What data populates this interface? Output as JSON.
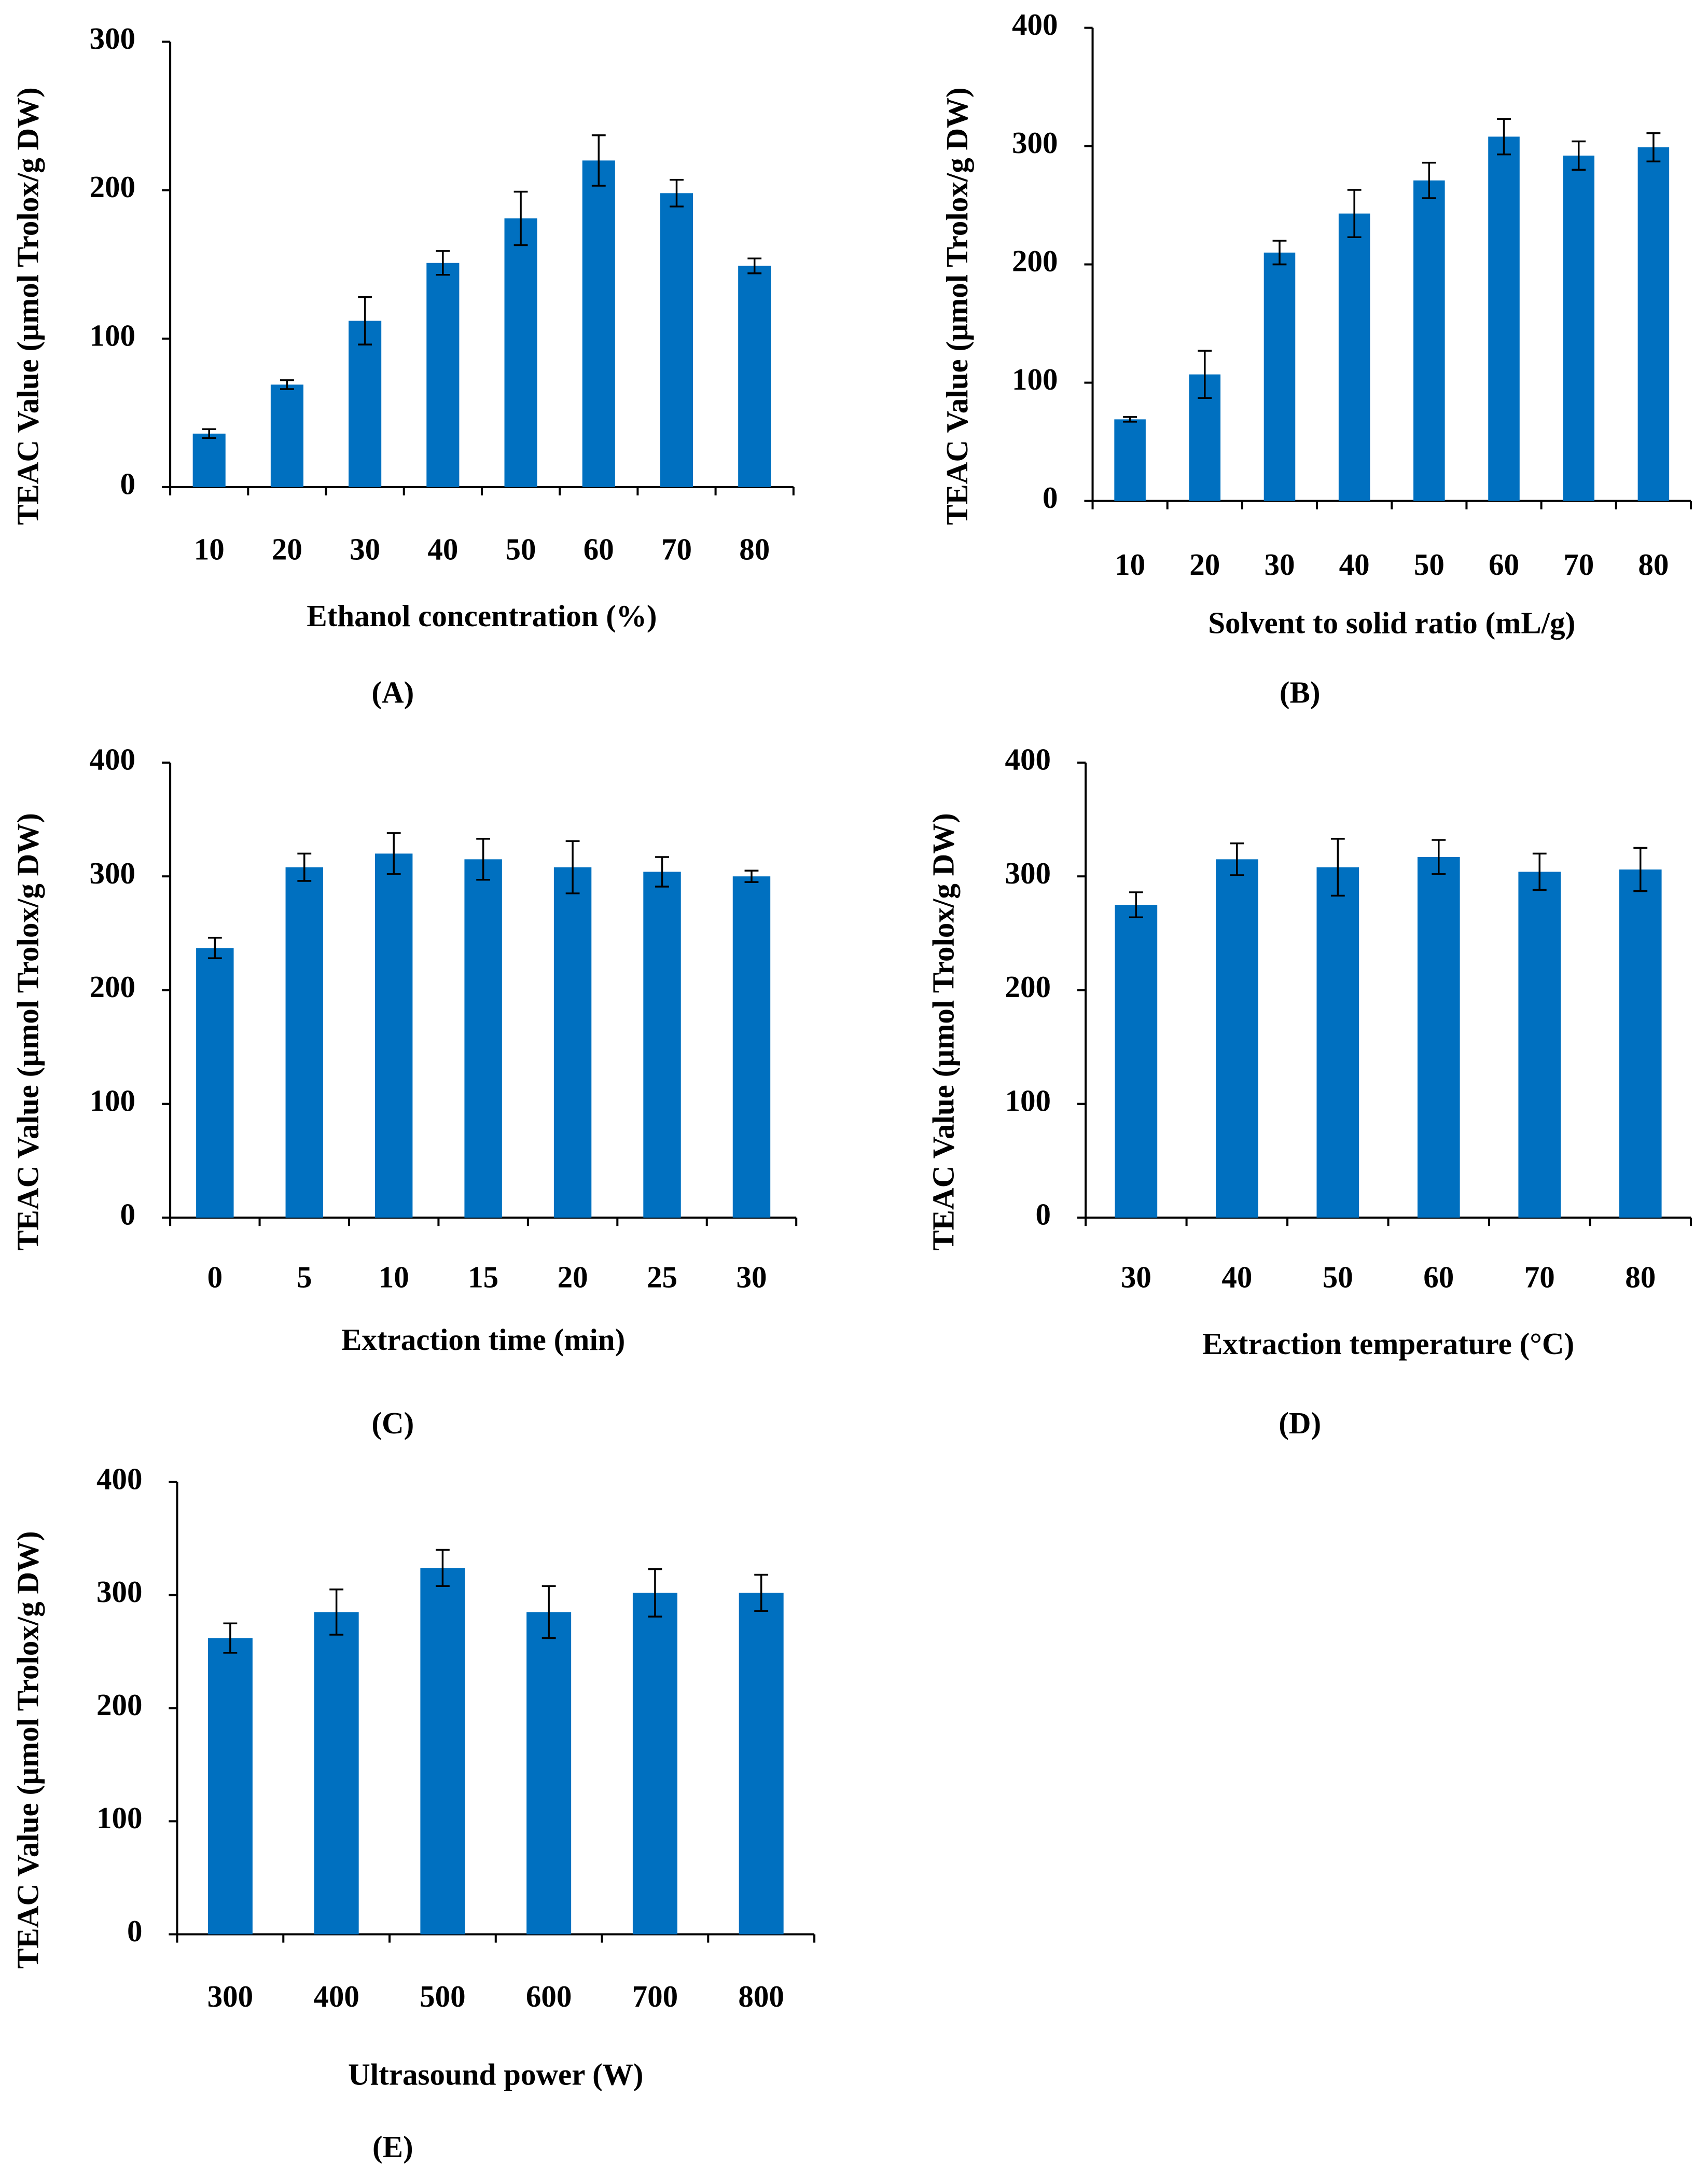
{
  "chart_data": [
    {
      "type": "bar",
      "panel": "(A)",
      "xlabel": "Ethanol concentration (%)",
      "ylabel": "TEAC Value (µmol Trolox/g DW)",
      "categories": [
        "10",
        "20",
        "30",
        "40",
        "50",
        "60",
        "70",
        "80"
      ],
      "values": [
        36,
        69,
        112,
        151,
        181,
        220,
        198,
        149
      ],
      "errors": [
        3,
        3,
        16,
        8,
        18,
        17,
        9,
        5
      ],
      "color": "#0070c0",
      "ylim": [
        0,
        300
      ],
      "yticks": [
        0,
        100,
        200,
        300
      ]
    },
    {
      "type": "bar",
      "panel": "(B)",
      "xlabel": "Solvent to solid ratio (mL/g)",
      "ylabel": "TEAC Value (µmol Trolox/g DW)",
      "categories": [
        "10",
        "20",
        "30",
        "40",
        "50",
        "60",
        "70",
        "80"
      ],
      "values": [
        69,
        107,
        210,
        243,
        271,
        308,
        292,
        299
      ],
      "errors": [
        2,
        20,
        10,
        20,
        15,
        15,
        12,
        12
      ],
      "color": "#0070c0",
      "ylim": [
        0,
        400
      ],
      "yticks": [
        0,
        100,
        200,
        300,
        400
      ]
    },
    {
      "type": "bar",
      "panel": "(C)",
      "xlabel": "Extraction time (min)",
      "ylabel": "TEAC Value (µmol Trolox/g DW)",
      "categories": [
        "0",
        "5",
        "10",
        "15",
        "20",
        "25",
        "30"
      ],
      "values": [
        237,
        308,
        320,
        315,
        308,
        304,
        300
      ],
      "errors": [
        9,
        12,
        18,
        18,
        23,
        13,
        5
      ],
      "color": "#0070c0",
      "ylim": [
        0,
        400
      ],
      "yticks": [
        0,
        100,
        200,
        300,
        400
      ]
    },
    {
      "type": "bar",
      "panel": "(D)",
      "xlabel": "Extraction temperature  (°C)",
      "ylabel": "TEAC Value (µmol Trolox/g DW)",
      "categories": [
        "30",
        "40",
        "50",
        "60",
        "70",
        "80"
      ],
      "values": [
        275,
        315,
        308,
        317,
        304,
        306
      ],
      "errors": [
        11,
        14,
        25,
        15,
        16,
        19
      ],
      "color": "#0070c0",
      "ylim": [
        0,
        400
      ],
      "yticks": [
        0,
        100,
        200,
        300,
        400
      ]
    },
    {
      "type": "bar",
      "panel": "(E)",
      "xlabel": "Ultrasound power (W)",
      "ylabel": "TEAC Value (µmol Trolox/g DW)",
      "categories": [
        "300",
        "400",
        "500",
        "600",
        "700",
        "800"
      ],
      "values": [
        262,
        285,
        324,
        285,
        302,
        302
      ],
      "errors": [
        13,
        20,
        16,
        23,
        21,
        16
      ],
      "color": "#0070c0",
      "ylim": [
        0,
        400
      ],
      "yticks": [
        0,
        100,
        200,
        300,
        400
      ]
    }
  ]
}
